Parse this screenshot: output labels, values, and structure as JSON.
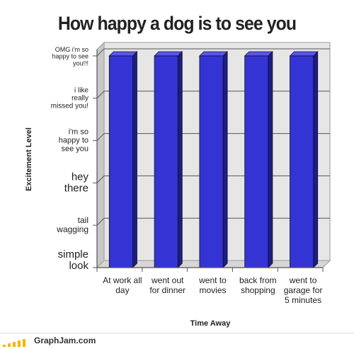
{
  "chart_data": {
    "type": "bar",
    "title": "How happy a dog is to see you",
    "xlabel": "Time Away",
    "ylabel": "Excitement Level",
    "categories": [
      "At work all day",
      "went out for dinner",
      "went to movies",
      "back from shopping",
      "went to garage for 5 minutes"
    ],
    "y_levels": [
      "simple look",
      "tail wagging",
      "hey there",
      "i'm so happy to see you",
      "i like really missed you!",
      "OMG i'm so happy to see you!!!"
    ],
    "values": [
      "OMG i'm so happy to see you!!!",
      "OMG i'm so happy to see you!!!",
      "OMG i'm so happy to see you!!!",
      "OMG i'm so happy to see you!!!",
      "OMG i'm so happy to see you!!!"
    ],
    "colors": {
      "bar": "#3434d4",
      "bar_side": "#1c1c8a",
      "wall": "#e6e6e6",
      "wall_shade": "#c8c8c8",
      "axis": "#555555"
    },
    "grid": true,
    "legend": "none"
  },
  "footer": {
    "site": "GraphJam.com",
    "bar_colors": [
      "#f7b500",
      "#f7b500",
      "#f7b500",
      "#f7b500",
      "#f7b500"
    ]
  }
}
